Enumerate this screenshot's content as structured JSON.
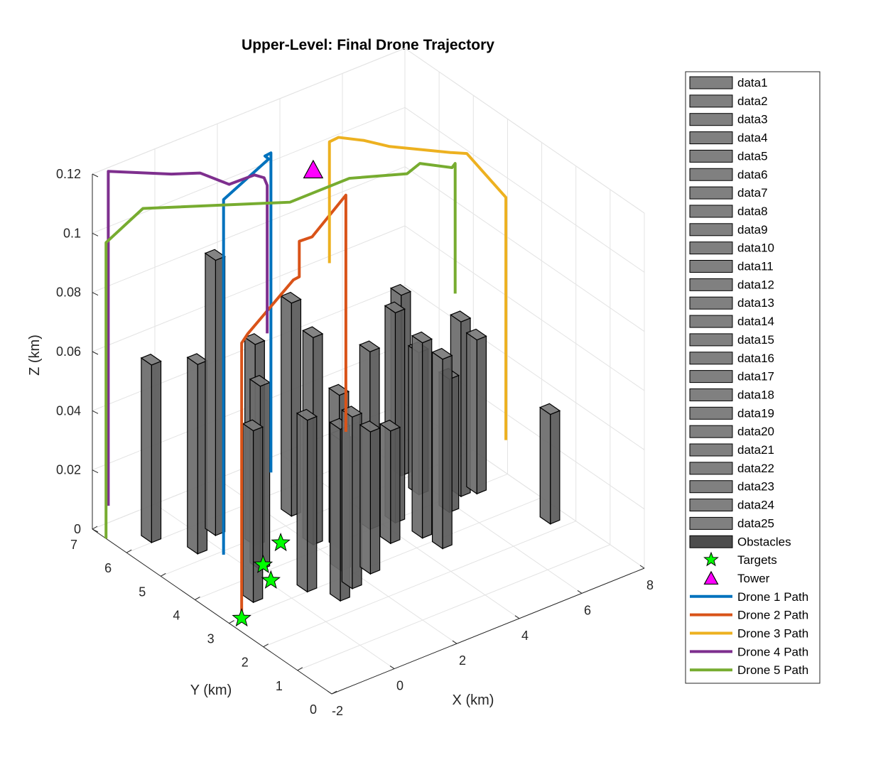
{
  "chart_data": {
    "type": "line3d",
    "title": "Upper-Level: Final Drone Trajectory",
    "xlabel": "X (km)",
    "ylabel": "Y (km)",
    "zlabel": "Z (km)",
    "xlim": [
      -2,
      8
    ],
    "ylim": [
      0,
      7
    ],
    "zlim": [
      0,
      0.12
    ],
    "xticks": [
      "-2",
      "0",
      "2",
      "4",
      "6",
      "8"
    ],
    "yticks": [
      "0",
      "1",
      "2",
      "3",
      "4",
      "5",
      "6",
      "7"
    ],
    "zticks": [
      "0",
      "0.02",
      "0.04",
      "0.06",
      "0.08",
      "0.1",
      "0.12"
    ],
    "grid": true,
    "legend_position": "outside-right",
    "legend": [
      {
        "label": "data1",
        "kind": "bar",
        "color": "#808080"
      },
      {
        "label": "data2",
        "kind": "bar",
        "color": "#808080"
      },
      {
        "label": "data3",
        "kind": "bar",
        "color": "#808080"
      },
      {
        "label": "data4",
        "kind": "bar",
        "color": "#808080"
      },
      {
        "label": "data5",
        "kind": "bar",
        "color": "#808080"
      },
      {
        "label": "data6",
        "kind": "bar",
        "color": "#808080"
      },
      {
        "label": "data7",
        "kind": "bar",
        "color": "#808080"
      },
      {
        "label": "data8",
        "kind": "bar",
        "color": "#808080"
      },
      {
        "label": "data9",
        "kind": "bar",
        "color": "#808080"
      },
      {
        "label": "data10",
        "kind": "bar",
        "color": "#808080"
      },
      {
        "label": "data11",
        "kind": "bar",
        "color": "#808080"
      },
      {
        "label": "data12",
        "kind": "bar",
        "color": "#808080"
      },
      {
        "label": "data13",
        "kind": "bar",
        "color": "#808080"
      },
      {
        "label": "data14",
        "kind": "bar",
        "color": "#808080"
      },
      {
        "label": "data15",
        "kind": "bar",
        "color": "#808080"
      },
      {
        "label": "data16",
        "kind": "bar",
        "color": "#808080"
      },
      {
        "label": "data17",
        "kind": "bar",
        "color": "#808080"
      },
      {
        "label": "data18",
        "kind": "bar",
        "color": "#808080"
      },
      {
        "label": "data19",
        "kind": "bar",
        "color": "#808080"
      },
      {
        "label": "data20",
        "kind": "bar",
        "color": "#808080"
      },
      {
        "label": "data21",
        "kind": "bar",
        "color": "#808080"
      },
      {
        "label": "data22",
        "kind": "bar",
        "color": "#808080"
      },
      {
        "label": "data23",
        "kind": "bar",
        "color": "#808080"
      },
      {
        "label": "data24",
        "kind": "bar",
        "color": "#808080"
      },
      {
        "label": "data25",
        "kind": "bar",
        "color": "#808080"
      },
      {
        "label": "Obstacles",
        "kind": "bar",
        "color": "#4d4d4d"
      },
      {
        "label": "Targets",
        "kind": "star",
        "color": "#00ff00"
      },
      {
        "label": "Tower",
        "kind": "triangle",
        "color": "#ff00ff"
      },
      {
        "label": "Drone 1 Path",
        "kind": "line",
        "color": "#0072bd"
      },
      {
        "label": "Drone 2 Path",
        "kind": "line",
        "color": "#d95319"
      },
      {
        "label": "Drone 3 Path",
        "kind": "line",
        "color": "#edb120"
      },
      {
        "label": "Drone 4 Path",
        "kind": "line",
        "color": "#7e2f8e"
      },
      {
        "label": "Drone 5 Path",
        "kind": "line",
        "color": "#77ac30"
      }
    ],
    "obstacles": [
      {
        "x": -1.2,
        "y": 6.0,
        "h": 0.06
      },
      {
        "x": -0.6,
        "y": 5.2,
        "h": 0.064
      },
      {
        "x": -0.9,
        "y": 3.3,
        "h": 0.058
      },
      {
        "x": 0.3,
        "y": 5.5,
        "h": 0.093
      },
      {
        "x": 0.8,
        "y": 4.8,
        "h": 0.068
      },
      {
        "x": 0.2,
        "y": 4.1,
        "h": 0.062
      },
      {
        "x": 0.5,
        "y": 3.0,
        "h": 0.058
      },
      {
        "x": 0.9,
        "y": 2.4,
        "h": 0.058
      },
      {
        "x": 2.4,
        "y": 5.2,
        "h": 0.072
      },
      {
        "x": 2.0,
        "y": 4.2,
        "h": 0.07
      },
      {
        "x": 1.8,
        "y": 3.2,
        "h": 0.044
      },
      {
        "x": 1.5,
        "y": 2.6,
        "h": 0.058
      },
      {
        "x": 2.4,
        "y": 3.8,
        "h": 0.052
      },
      {
        "x": 2.3,
        "y": 2.8,
        "h": 0.048
      },
      {
        "x": 3.6,
        "y": 4.0,
        "h": 0.06
      },
      {
        "x": 3.6,
        "y": 3.4,
        "h": 0.038
      },
      {
        "x": 4.3,
        "y": 3.9,
        "h": 0.071
      },
      {
        "x": 4.4,
        "y": 3.2,
        "h": 0.066
      },
      {
        "x": 4.5,
        "y": 2.7,
        "h": 0.064
      },
      {
        "x": 5.8,
        "y": 5.1,
        "h": 0.061
      },
      {
        "x": 5.6,
        "y": 4.4,
        "h": 0.048
      },
      {
        "x": 5.7,
        "y": 3.6,
        "h": 0.045
      },
      {
        "x": 6.4,
        "y": 3.9,
        "h": 0.059
      },
      {
        "x": 6.8,
        "y": 3.8,
        "h": 0.052
      },
      {
        "x": 7.4,
        "y": 2.2,
        "h": 0.037
      }
    ],
    "targets": [
      {
        "x": -1.6,
        "y": 3.0,
        "z": 0
      },
      {
        "x": 0.4,
        "y": 4.2,
        "z": 0
      },
      {
        "x": 0.1,
        "y": 3.7,
        "z": 0
      },
      {
        "x": 1.4,
        "y": 4.6,
        "z": 0
      }
    ],
    "tower": {
      "x": 4.3,
      "y": 6.3,
      "z": 0.1
    },
    "series": [
      {
        "name": "Drone 1 Path",
        "color": "#0072bd",
        "points": [
          [
            -0.1,
            4.9,
            0
          ],
          [
            -0.1,
            4.9,
            0.12
          ],
          [
            2.0,
            5.5,
            0.12
          ],
          [
            2.1,
            5.7,
            0.119
          ],
          [
            2.4,
            5.8,
            0.118
          ],
          [
            2.4,
            5.8,
            0.01
          ]
        ]
      },
      {
        "name": "Drone 2 Path",
        "color": "#d95319",
        "points": [
          [
            -1.6,
            3.0,
            0
          ],
          [
            -1.6,
            3.0,
            0.093
          ],
          [
            -1.3,
            3.1,
            0.094
          ],
          [
            0.6,
            3.5,
            0.101
          ],
          [
            0.9,
            3.6,
            0.1
          ],
          [
            0.9,
            3.6,
            0.112
          ],
          [
            1.2,
            3.5,
            0.113
          ],
          [
            2.5,
            3.7,
            0.12
          ],
          [
            2.5,
            3.7,
            0.04
          ]
        ]
      },
      {
        "name": "Drone 3 Path",
        "color": "#edb120",
        "points": [
          [
            4.6,
            6.1,
            0.069
          ],
          [
            4.6,
            6.1,
            0.11
          ],
          [
            5.0,
            6.2,
            0.109
          ],
          [
            5.6,
            6.0,
            0.107
          ],
          [
            6.2,
            5.8,
            0.104
          ],
          [
            7.6,
            5.3,
            0.1
          ],
          [
            7.9,
            5.1,
            0.1
          ],
          [
            7.4,
            3.5,
            0.1
          ],
          [
            7.4,
            3.5,
            0.018
          ]
        ]
      },
      {
        "name": "Drone 4 Path",
        "color": "#7e2f8e",
        "points": [
          [
            -1.6,
            6.9,
            0.007
          ],
          [
            -1.6,
            6.9,
            0.12
          ],
          [
            0.2,
            6.7,
            0.113
          ],
          [
            0.9,
            6.5,
            0.112
          ],
          [
            1.5,
            6.2,
            0.108
          ],
          [
            2.2,
            6.1,
            0.109
          ],
          [
            2.4,
            6.0,
            0.108
          ],
          [
            2.5,
            6.0,
            0.105
          ],
          [
            2.5,
            6.0,
            0.055
          ]
        ]
      },
      {
        "name": "Drone 5 Path",
        "color": "#77ac30",
        "points": [
          [
            -2.0,
            6.6,
            0.0
          ],
          [
            -2.0,
            6.6,
            0.1
          ],
          [
            -0.6,
            6.8,
            0.104
          ],
          [
            2.9,
            5.7,
            0.1
          ],
          [
            4.8,
            5.7,
            0.1
          ],
          [
            6.1,
            5.2,
            0.1
          ],
          [
            6.4,
            5.1,
            0.103
          ],
          [
            7.1,
            4.8,
            0.101
          ],
          [
            7.2,
            4.8,
            0.102
          ],
          [
            7.2,
            4.8,
            0.058
          ]
        ]
      }
    ]
  }
}
